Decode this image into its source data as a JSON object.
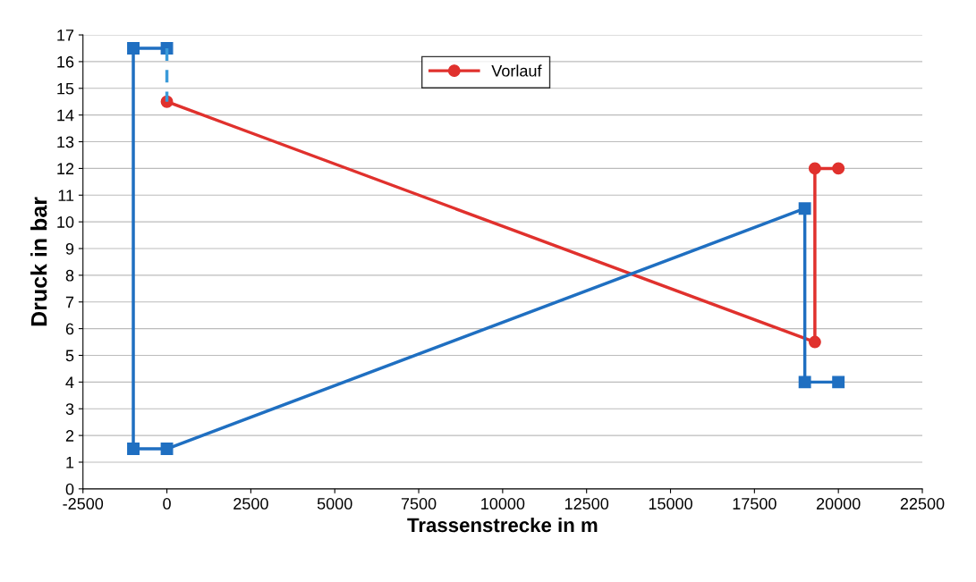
{
  "chart_data": {
    "type": "line",
    "xlabel": "Trassenstrecke in m",
    "ylabel": "Druck in bar",
    "series": [
      {
        "name": "Vorlauf",
        "color": "#e0312d",
        "marker": "circle",
        "x": [
          0,
          19300,
          19300,
          20000
        ],
        "values": [
          14.5,
          5.5,
          12,
          12
        ]
      },
      {
        "color": "#1f6fc1",
        "marker": "square",
        "x": [
          0,
          -1000,
          -1000,
          0,
          19000,
          19000,
          20000
        ],
        "values": [
          16.5,
          16.5,
          1.5,
          1.5,
          10.5,
          4,
          4
        ]
      },
      {
        "color": "#3a9ad9",
        "marker": "none",
        "line_style": "dashed",
        "x": [
          0,
          0
        ],
        "values": [
          16.5,
          14.5
        ]
      }
    ],
    "xlim": [
      -2500,
      22500
    ],
    "xticks": [
      -2500,
      0,
      2500,
      5000,
      7500,
      10000,
      12500,
      15000,
      17500,
      20000,
      22500
    ],
    "ylim": [
      0,
      17
    ],
    "yticks": [
      0,
      1,
      2,
      3,
      4,
      5,
      6,
      7,
      8,
      9,
      10,
      11,
      12,
      13,
      14,
      15,
      16,
      17
    ],
    "grid": "y",
    "legend": "top"
  }
}
